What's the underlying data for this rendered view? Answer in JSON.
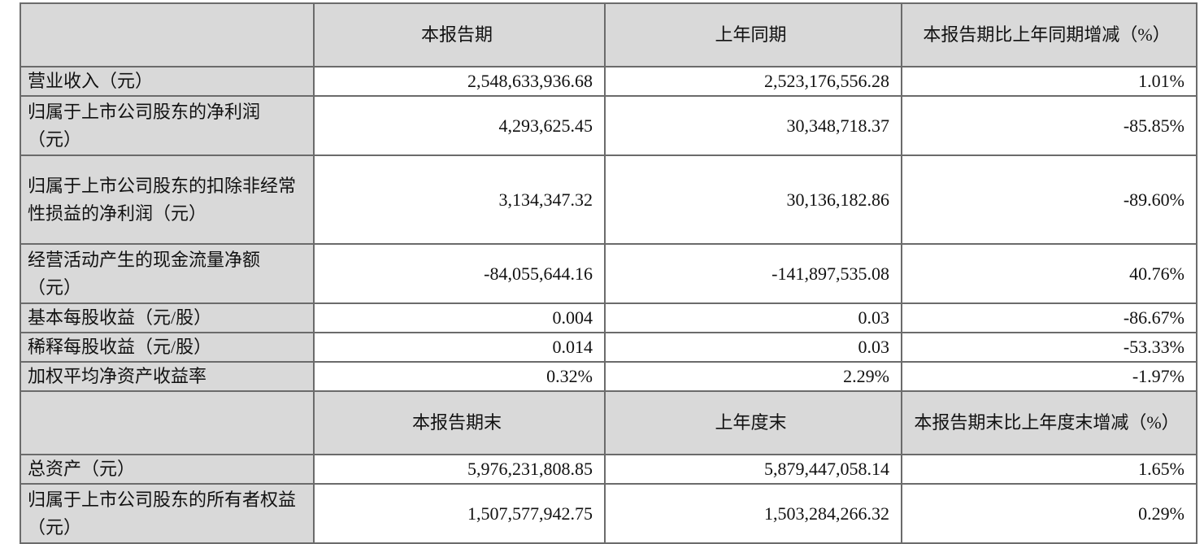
{
  "header1": [
    "",
    "本报告期",
    "上年同期",
    "本报告期比上年同期增减（%）"
  ],
  "rows1": [
    {
      "label": "营业收入（元）",
      "values": [
        "2,548,633,936.68",
        "2,523,176,556.28",
        "1.01%"
      ]
    },
    {
      "label": "归属于上市公司股东的净利润（元）",
      "values": [
        "4,293,625.45",
        "30,348,718.37",
        "-85.85%"
      ]
    },
    {
      "label": "归属于上市公司股东的扣除非经常性损益的净利润（元）",
      "values": [
        "3,134,347.32",
        "30,136,182.86",
        "-89.60%"
      ]
    },
    {
      "label": "经营活动产生的现金流量净额（元）",
      "values": [
        "-84,055,644.16",
        "-141,897,535.08",
        "40.76%"
      ]
    },
    {
      "label": "基本每股收益（元/股）",
      "values": [
        "0.004",
        "0.03",
        "-86.67%"
      ]
    },
    {
      "label": "稀释每股收益（元/股）",
      "values": [
        "0.014",
        "0.03",
        "-53.33%"
      ]
    },
    {
      "label": "加权平均净资产收益率",
      "values": [
        "0.32%",
        "2.29%",
        "-1.97%"
      ]
    }
  ],
  "header2": [
    "",
    "本报告期末",
    "上年度末",
    "本报告期末比上年度末增减（%）"
  ],
  "rows2": [
    {
      "label": "总资产（元）",
      "values": [
        "5,976,231,808.85",
        "5,879,447,058.14",
        "1.65%"
      ]
    },
    {
      "label": "归属于上市公司股东的所有者权益（元）",
      "values": [
        "1,507,577,942.75",
        "1,503,284,266.32",
        "0.29%"
      ]
    }
  ],
  "colors": {
    "header_bg": "#d9d9d9",
    "border": "#6b6b6b"
  }
}
